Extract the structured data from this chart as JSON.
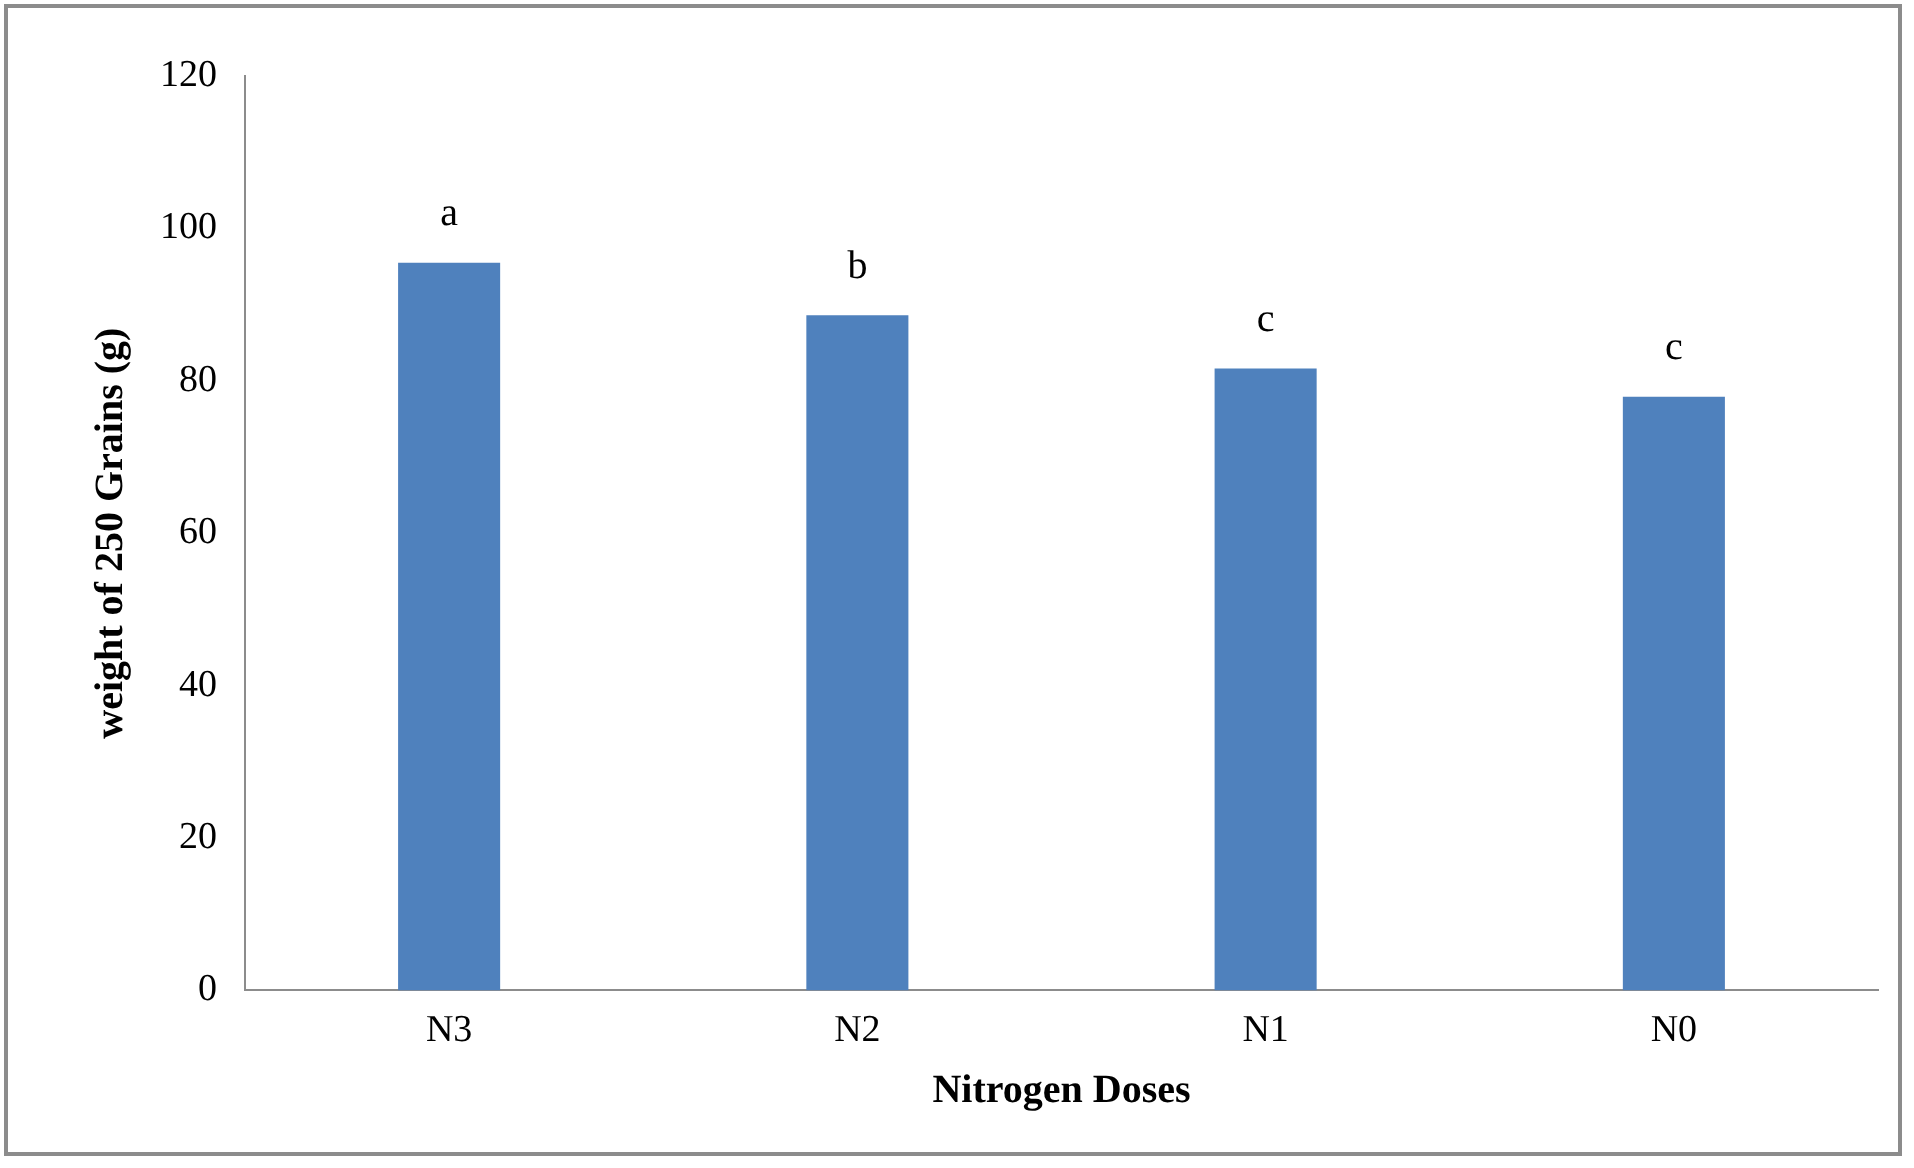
{
  "chart_data": {
    "type": "bar",
    "xlabel": "Nitrogen Doses",
    "ylabel": "weight of 250 Grains (g)",
    "categories": [
      "N3",
      "N2",
      "N1",
      "N0"
    ],
    "values": [
      95.5,
      88.6,
      81.6,
      77.9
    ],
    "color": "#4f81bd",
    "ylim": [
      0,
      120
    ],
    "yticks": [
      0,
      20,
      40,
      60,
      80,
      100,
      120
    ],
    "grid": false,
    "legend": false,
    "value_labels": [
      "a",
      "b",
      "c",
      "c"
    ]
  }
}
